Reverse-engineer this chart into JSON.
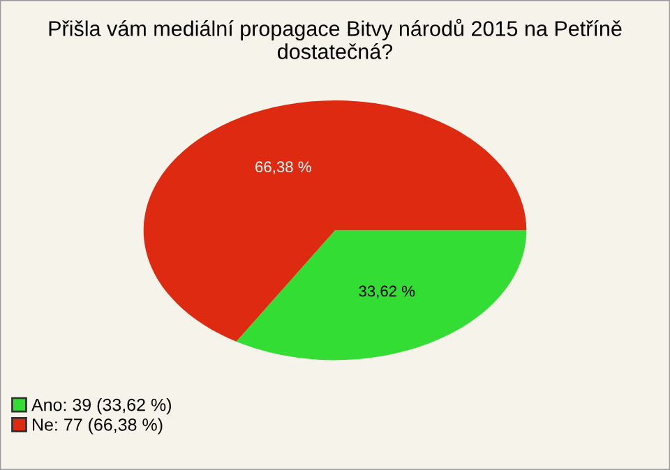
{
  "chart_data": {
    "type": "pie",
    "title": "Přišla vám mediální propagace Bitvy národů 2015 na Petříně dostatečná?",
    "categories": [
      "Ano: 39 (33,62 %)",
      "Ne: 77 (66,38 %)"
    ],
    "values": [
      33.62,
      66.38
    ],
    "value_labels": [
      "33,62 %",
      "66,38 %"
    ],
    "colors": [
      "#33dd33",
      "#dd2a10"
    ],
    "legend": "bottom left"
  }
}
